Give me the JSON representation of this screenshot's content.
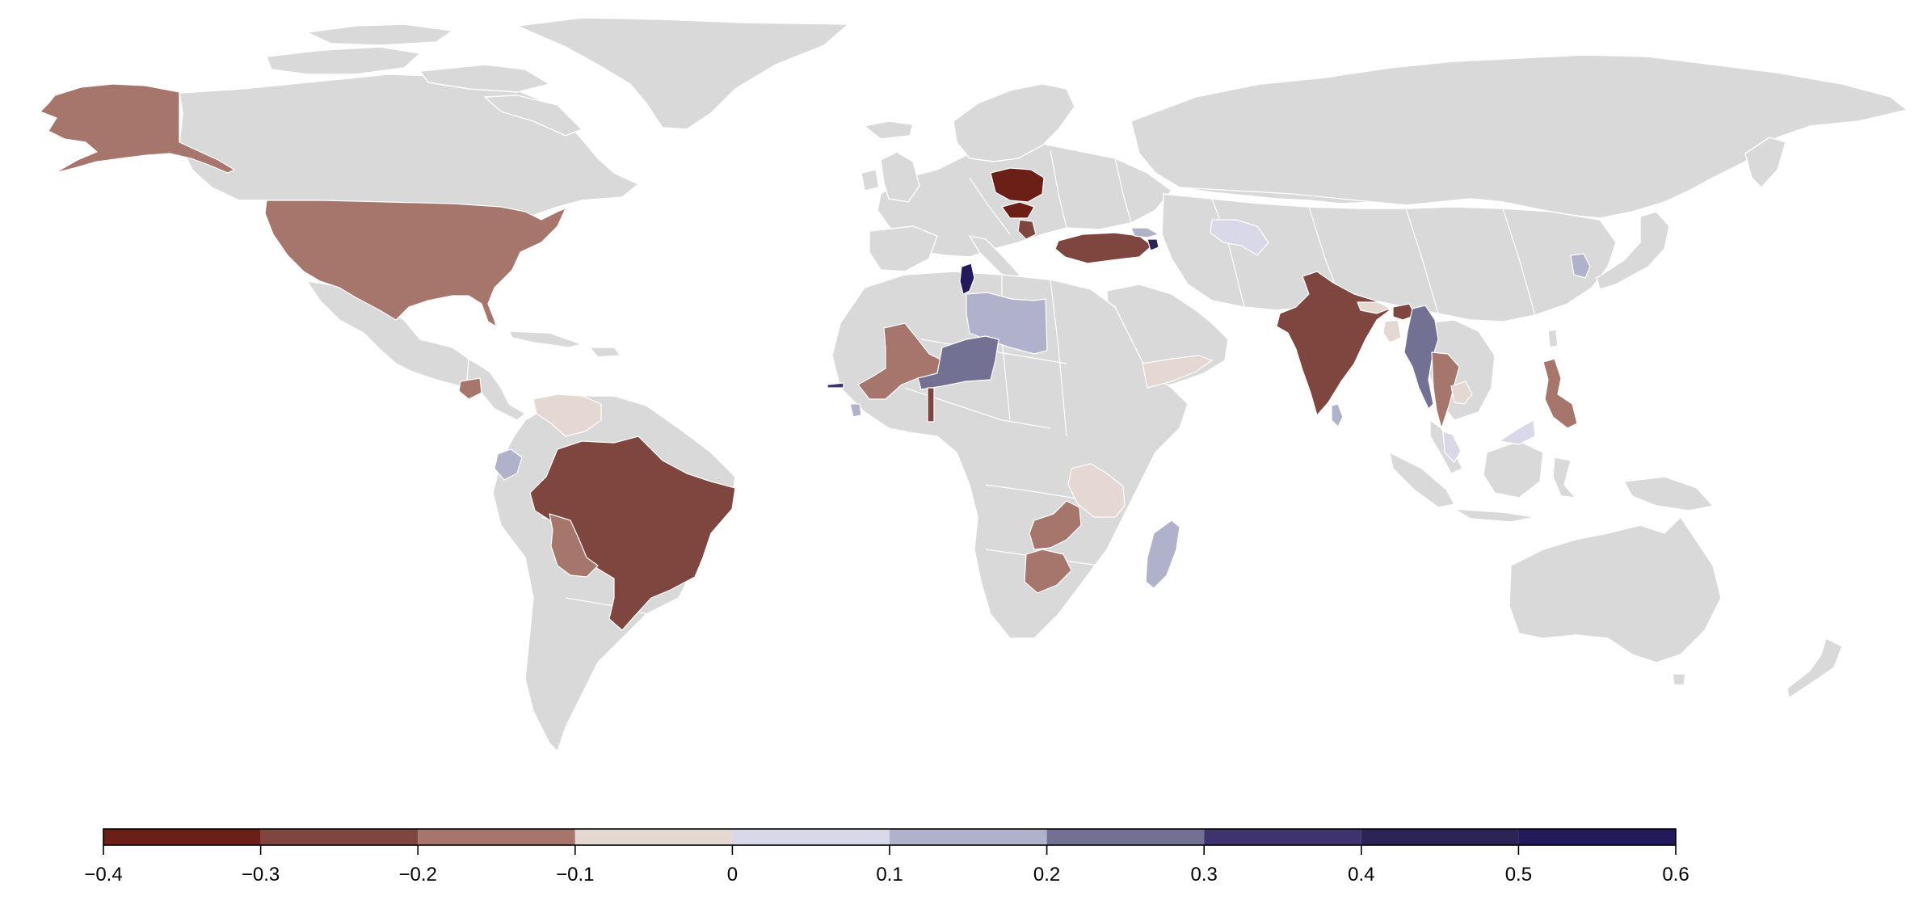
{
  "map": {
    "base_color": "#d9d9d9",
    "border_color": "#ffffff",
    "highlighted": [
      {
        "region": "Alaska",
        "bin": 2
      },
      {
        "region": "United States",
        "bin": 2
      },
      {
        "region": "Honduras",
        "bin": 2
      },
      {
        "region": "Venezuela",
        "bin": 3
      },
      {
        "region": "Ecuador",
        "bin": 5
      },
      {
        "region": "Brazil",
        "bin": 1
      },
      {
        "region": "Bolivia",
        "bin": 2
      },
      {
        "region": "Poland",
        "bin": 0
      },
      {
        "region": "Hungary",
        "bin": 0
      },
      {
        "region": "Serbia",
        "bin": 1
      },
      {
        "region": "Turkey",
        "bin": 1
      },
      {
        "region": "Georgia",
        "bin": 5
      },
      {
        "region": "Armenia",
        "bin": 8
      },
      {
        "region": "Uzbekistan",
        "bin": 4
      },
      {
        "region": "Tunisia",
        "bin": 9
      },
      {
        "region": "Libya",
        "bin": 5
      },
      {
        "region": "Mali",
        "bin": 2
      },
      {
        "region": "Niger",
        "bin": 6
      },
      {
        "region": "Gambia",
        "bin": 7
      },
      {
        "region": "Liberia",
        "bin": 5
      },
      {
        "region": "Togo",
        "bin": 1
      },
      {
        "region": "Yemen",
        "bin": 3
      },
      {
        "region": "Tanzania",
        "bin": 3
      },
      {
        "region": "Zambia",
        "bin": 2
      },
      {
        "region": "Zimbabwe",
        "bin": 2
      },
      {
        "region": "Madagascar",
        "bin": 5
      },
      {
        "region": "India",
        "bin": 1
      },
      {
        "region": "Nepal",
        "bin": 3
      },
      {
        "region": "Bangladesh",
        "bin": 3
      },
      {
        "region": "Bhutan",
        "bin": 1
      },
      {
        "region": "Myanmar",
        "bin": 6
      },
      {
        "region": "Sri Lanka",
        "bin": 5
      },
      {
        "region": "Thailand",
        "bin": 2
      },
      {
        "region": "Cambodia",
        "bin": 3
      },
      {
        "region": "Malaysia",
        "bin": 4
      },
      {
        "region": "South Korea",
        "bin": 5
      },
      {
        "region": "Philippines",
        "bin": 2
      }
    ]
  },
  "colorbar": {
    "breaks": [
      -0.4,
      -0.3,
      -0.2,
      -0.1,
      0,
      0.1,
      0.2,
      0.3,
      0.4,
      0.5,
      0.6
    ],
    "tick_labels": [
      "−0.4",
      "−0.3",
      "−0.2",
      "−0.1",
      "0",
      "0.1",
      "0.2",
      "0.3",
      "0.4",
      "0.5",
      "0.6"
    ],
    "colors": [
      "#6b1f17",
      "#7e463f",
      "#a6756c",
      "#e5d7d1",
      "#d8d8e9",
      "#b0b1cb",
      "#727194",
      "#3e336e",
      "#2b2455",
      "#231a5c"
    ]
  }
}
